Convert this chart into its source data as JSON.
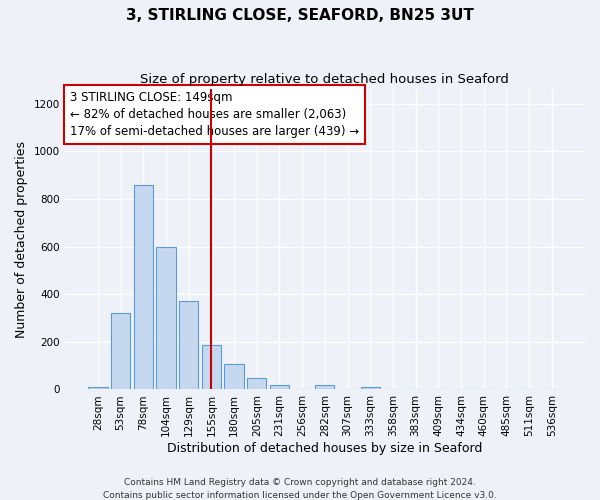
{
  "title": "3, STIRLING CLOSE, SEAFORD, BN25 3UT",
  "subtitle": "Size of property relative to detached houses in Seaford",
  "xlabel": "Distribution of detached houses by size in Seaford",
  "ylabel": "Number of detached properties",
  "bar_labels": [
    "28sqm",
    "53sqm",
    "78sqm",
    "104sqm",
    "129sqm",
    "155sqm",
    "180sqm",
    "205sqm",
    "231sqm",
    "256sqm",
    "282sqm",
    "307sqm",
    "333sqm",
    "358sqm",
    "383sqm",
    "409sqm",
    "434sqm",
    "460sqm",
    "485sqm",
    "511sqm",
    "536sqm"
  ],
  "bar_values": [
    12,
    320,
    860,
    600,
    370,
    185,
    105,
    48,
    20,
    0,
    18,
    0,
    12,
    0,
    0,
    0,
    0,
    0,
    0,
    0,
    0
  ],
  "bar_color": "#c5d8f0",
  "bar_edgecolor": "#5b9bd5",
  "vline_index": 5,
  "vline_color": "#cc0000",
  "ylim": [
    0,
    1260
  ],
  "yticks": [
    0,
    200,
    400,
    600,
    800,
    1000,
    1200
  ],
  "annotation_title": "3 STIRLING CLOSE: 149sqm",
  "annotation_line1": "← 82% of detached houses are smaller (2,063)",
  "annotation_line2": "17% of semi-detached houses are larger (439) →",
  "annotation_box_color": "#ffffff",
  "annotation_box_edgecolor": "#cc0000",
  "footer1": "Contains HM Land Registry data © Crown copyright and database right 2024.",
  "footer2": "Contains public sector information licensed under the Open Government Licence v3.0.",
  "background_color": "#eef2f8",
  "grid_color": "#ffffff",
  "title_fontsize": 11,
  "subtitle_fontsize": 9.5,
  "label_fontsize": 9,
  "tick_fontsize": 7.5,
  "annotation_fontsize": 8.5,
  "footer_fontsize": 6.5
}
